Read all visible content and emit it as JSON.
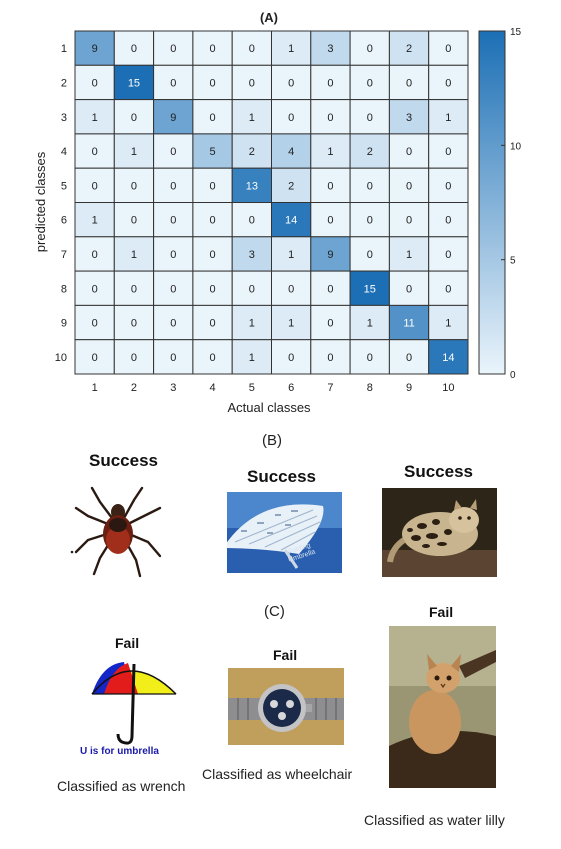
{
  "chart_data": {
    "type": "heatmap",
    "title": "(A)",
    "xlabel": "Actual classes",
    "ylabel": "predicted classes",
    "x_categories": [
      "1",
      "2",
      "3",
      "4",
      "5",
      "6",
      "7",
      "8",
      "9",
      "10"
    ],
    "y_categories": [
      "1",
      "2",
      "3",
      "4",
      "5",
      "6",
      "7",
      "8",
      "9",
      "10"
    ],
    "matrix": [
      [
        9,
        0,
        0,
        0,
        0,
        1,
        3,
        0,
        2,
        0
      ],
      [
        0,
        15,
        0,
        0,
        0,
        0,
        0,
        0,
        0,
        0
      ],
      [
        1,
        0,
        9,
        0,
        1,
        0,
        0,
        0,
        3,
        1
      ],
      [
        0,
        1,
        0,
        5,
        2,
        4,
        1,
        2,
        0,
        0
      ],
      [
        0,
        0,
        0,
        0,
        13,
        2,
        0,
        0,
        0,
        0
      ],
      [
        1,
        0,
        0,
        0,
        0,
        14,
        0,
        0,
        0,
        0
      ],
      [
        0,
        1,
        0,
        0,
        3,
        1,
        9,
        0,
        1,
        0
      ],
      [
        0,
        0,
        0,
        0,
        0,
        0,
        0,
        15,
        0,
        0
      ],
      [
        0,
        0,
        0,
        0,
        1,
        1,
        0,
        1,
        11,
        1
      ],
      [
        0,
        0,
        0,
        0,
        1,
        0,
        0,
        0,
        0,
        14
      ]
    ],
    "colorbar": {
      "min": 0,
      "max": 15,
      "ticks": [
        0,
        5,
        10,
        15
      ]
    },
    "colors": {
      "low": "#eaf4fb",
      "high": "#1c6fb5",
      "grid": "#333333"
    }
  },
  "panel_b": {
    "label": "(B)",
    "items": [
      {
        "status": "Success",
        "icon": "tick-photo"
      },
      {
        "status": "Success",
        "icon": "folding-umbrella-photo",
        "photo_text": "Folding Umbrella"
      },
      {
        "status": "Success",
        "icon": "ocelot-photo"
      }
    ]
  },
  "panel_c": {
    "label": "(C)",
    "items": [
      {
        "status": "Fail",
        "caption": "Classified as wrench",
        "icon": "umbrella-drawing",
        "drawing_text": "U is for umbrella"
      },
      {
        "status": "Fail",
        "caption": "Classified as wheelchair",
        "icon": "wristwatch-photo"
      },
      {
        "status": "Fail",
        "caption": "Classified as water lilly",
        "icon": "wild-cat-photo"
      }
    ]
  }
}
